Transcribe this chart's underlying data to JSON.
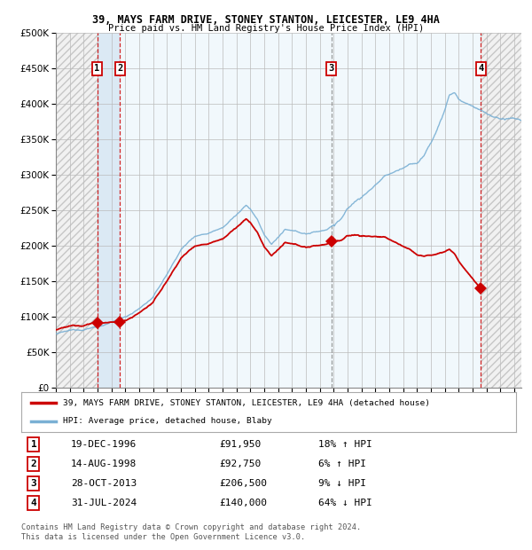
{
  "title1": "39, MAYS FARM DRIVE, STONEY STANTON, LEICESTER, LE9 4HA",
  "title2": "Price paid vs. HM Land Registry's House Price Index (HPI)",
  "ylim": [
    0,
    500000
  ],
  "yticks": [
    0,
    50000,
    100000,
    150000,
    200000,
    250000,
    300000,
    350000,
    400000,
    450000,
    500000
  ],
  "xlim_start": 1994.0,
  "xlim_end": 2027.5,
  "sale_dates": [
    1996.97,
    1998.62,
    2013.83,
    2024.58
  ],
  "sale_prices": [
    91950,
    92750,
    206500,
    140000
  ],
  "sale_labels": [
    "1",
    "2",
    "3",
    "4"
  ],
  "legend_label_red": "39, MAYS FARM DRIVE, STONEY STANTON, LEICESTER, LE9 4HA (detached house)",
  "legend_label_blue": "HPI: Average price, detached house, Blaby",
  "footnote": "Contains HM Land Registry data © Crown copyright and database right 2024.\nThis data is licensed under the Open Government Licence v3.0.",
  "table_rows": [
    [
      "1",
      "19-DEC-1996",
      "£91,950",
      "18% ↑ HPI"
    ],
    [
      "2",
      "14-AUG-1998",
      "£92,750",
      "6% ↑ HPI"
    ],
    [
      "3",
      "28-OCT-2013",
      "£206,500",
      "9% ↓ HPI"
    ],
    [
      "4",
      "31-JUL-2024",
      "£140,000",
      "64% ↓ HPI"
    ]
  ],
  "bg_color": "#ffffff",
  "grid_color": "#bbbbbb",
  "red_color": "#cc0000",
  "blue_color": "#7ab0d4",
  "sale1_date": 1996.97,
  "sale2_date": 1998.62,
  "sale3_date": 2013.83,
  "sale4_date": 2024.58,
  "hpi_base_points": [
    [
      1994.0,
      76000
    ],
    [
      1995.0,
      79000
    ],
    [
      1996.0,
      82000
    ],
    [
      1997.0,
      87000
    ],
    [
      1998.0,
      92000
    ],
    [
      1999.0,
      100000
    ],
    [
      2000.0,
      112000
    ],
    [
      2001.0,
      128000
    ],
    [
      2002.0,
      160000
    ],
    [
      2003.0,
      195000
    ],
    [
      2004.0,
      215000
    ],
    [
      2005.0,
      220000
    ],
    [
      2006.0,
      230000
    ],
    [
      2007.0,
      248000
    ],
    [
      2007.7,
      260000
    ],
    [
      2008.0,
      255000
    ],
    [
      2008.5,
      240000
    ],
    [
      2009.0,
      218000
    ],
    [
      2009.5,
      205000
    ],
    [
      2010.0,
      215000
    ],
    [
      2010.5,
      225000
    ],
    [
      2011.0,
      222000
    ],
    [
      2011.5,
      220000
    ],
    [
      2012.0,
      218000
    ],
    [
      2012.5,
      220000
    ],
    [
      2013.0,
      222000
    ],
    [
      2013.5,
      225000
    ],
    [
      2014.0,
      232000
    ],
    [
      2014.5,
      242000
    ],
    [
      2015.0,
      255000
    ],
    [
      2015.5,
      265000
    ],
    [
      2016.0,
      272000
    ],
    [
      2016.5,
      280000
    ],
    [
      2017.0,
      290000
    ],
    [
      2017.5,
      298000
    ],
    [
      2018.0,
      303000
    ],
    [
      2018.5,
      308000
    ],
    [
      2019.0,
      312000
    ],
    [
      2019.5,
      318000
    ],
    [
      2020.0,
      320000
    ],
    [
      2020.5,
      330000
    ],
    [
      2021.0,
      348000
    ],
    [
      2021.5,
      370000
    ],
    [
      2022.0,
      395000
    ],
    [
      2022.3,
      415000
    ],
    [
      2022.7,
      420000
    ],
    [
      2023.0,
      410000
    ],
    [
      2023.5,
      405000
    ],
    [
      2024.0,
      400000
    ],
    [
      2024.5,
      395000
    ],
    [
      2025.0,
      390000
    ],
    [
      2025.5,
      385000
    ],
    [
      2026.0,
      382000
    ],
    [
      2027.0,
      380000
    ],
    [
      2027.5,
      378000
    ]
  ]
}
